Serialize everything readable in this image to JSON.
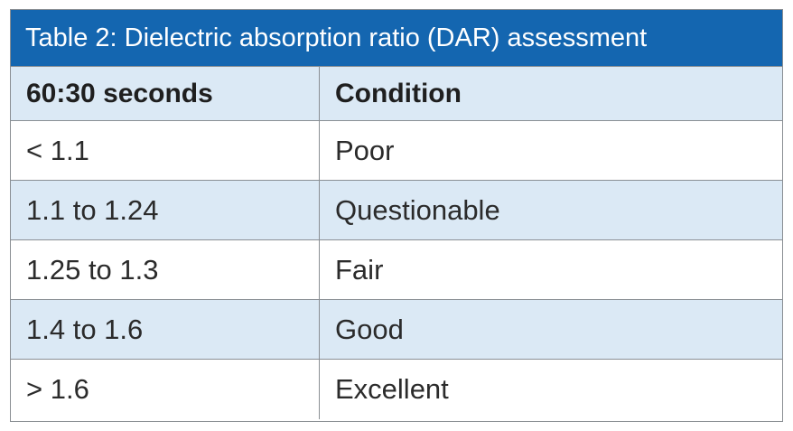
{
  "table": {
    "title": "Table 2: Dielectric absorption ratio (DAR) assessment",
    "headers": [
      "60:30 seconds",
      "Condition"
    ],
    "rows": [
      [
        "< 1.1",
        "Poor"
      ],
      [
        "1.1 to 1.24",
        "Questionable"
      ],
      [
        "1.25 to 1.3",
        "Fair"
      ],
      [
        "1.4 to 1.6",
        "Good"
      ],
      [
        "> 1.6",
        "Excellent"
      ]
    ]
  },
  "colors": {
    "title_bar": "#1466b0",
    "shaded_row": "#dbe9f5",
    "border": "#8a8f94",
    "text": "#2b2b2b"
  }
}
